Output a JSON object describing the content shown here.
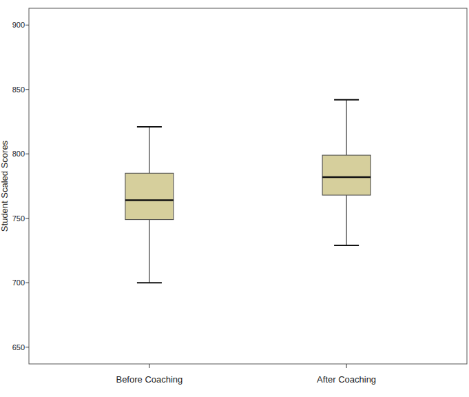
{
  "chart_data": {
    "type": "box",
    "y_label": "Student Scaled Scores",
    "categories": [
      "Before Coaching",
      "After Coaching"
    ],
    "values": [
      {
        "min": 700,
        "q1": 749,
        "median": 764,
        "q3": 785,
        "max": 821
      },
      {
        "min": 729,
        "q1": 768,
        "median": 782,
        "q3": 799,
        "max": 842
      }
    ],
    "color": "#d6cf9c",
    "ylim": [
      637,
      913
    ],
    "yticks": [
      650,
      700,
      750,
      800,
      850,
      900
    ],
    "grid": false
  }
}
